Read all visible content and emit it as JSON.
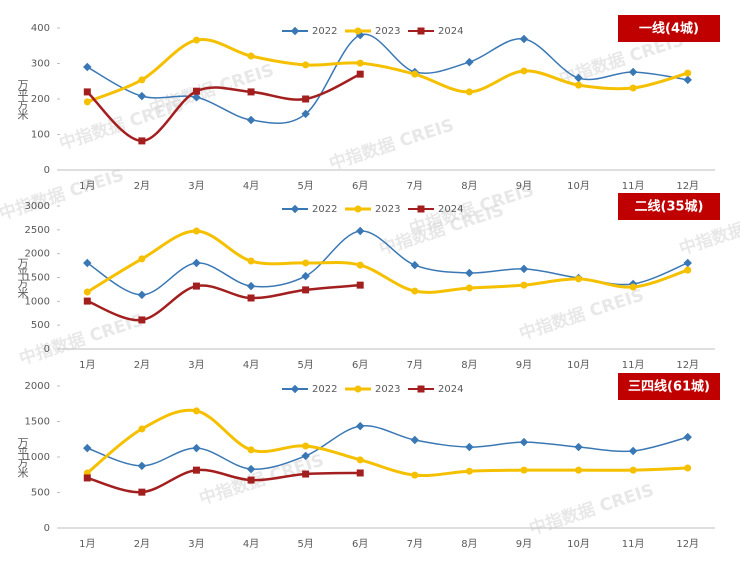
{
  "watermark": "中指数据 CREIS",
  "chart_data": [
    {
      "type": "line",
      "title": "一线(4城)",
      "y_label": "万平方米",
      "categories": [
        "1月",
        "2月",
        "3月",
        "4月",
        "5月",
        "6月",
        "7月",
        "8月",
        "9月",
        "10月",
        "11月",
        "12月"
      ],
      "ylim": [
        0,
        400
      ],
      "yticks": [
        0,
        100,
        200,
        300,
        400
      ],
      "series": [
        {
          "name": "2022",
          "color": "#3a78b5",
          "values": [
            290,
            208,
            205,
            141,
            158,
            380,
            276,
            304,
            369,
            259,
            276,
            254
          ]
        },
        {
          "name": "2023",
          "color": "#f5c000",
          "values": [
            192,
            254,
            366,
            321,
            296,
            301,
            270,
            220,
            279,
            239,
            231,
            273
          ]
        },
        {
          "name": "2024",
          "color": "#a31f1f",
          "values": [
            220,
            82,
            222,
            220,
            200,
            270,
            null,
            null,
            null,
            null,
            null,
            null
          ]
        }
      ]
    },
    {
      "type": "line",
      "title": "二线(35城)",
      "y_label": "万平方米",
      "categories": [
        "1月",
        "2月",
        "3月",
        "4月",
        "5月",
        "6月",
        "7月",
        "8月",
        "9月",
        "10月",
        "11月",
        "12月"
      ],
      "ylim": [
        0,
        3000
      ],
      "yticks": [
        0,
        500,
        1000,
        1500,
        2000,
        2500,
        3000
      ],
      "series": [
        {
          "name": "2022",
          "color": "#3a78b5",
          "values": [
            1805,
            1135,
            1805,
            1320,
            1530,
            2475,
            1760,
            1595,
            1680,
            1490,
            1365,
            1805
          ]
        },
        {
          "name": "2023",
          "color": "#f5c000",
          "values": [
            1195,
            1890,
            2475,
            1845,
            1805,
            1760,
            1215,
            1280,
            1340,
            1470,
            1300,
            1655
          ]
        },
        {
          "name": "2024",
          "color": "#a31f1f",
          "values": [
            1005,
            610,
            1320,
            1070,
            1240,
            1340,
            null,
            null,
            null,
            null,
            null,
            null
          ]
        }
      ]
    },
    {
      "type": "line",
      "title": "三四线(61城)",
      "y_label": "万平方米",
      "categories": [
        "1月",
        "2月",
        "3月",
        "4月",
        "5月",
        "6月",
        "7月",
        "8月",
        "9月",
        "10月",
        "11月",
        "12月"
      ],
      "ylim": [
        0,
        2000
      ],
      "yticks": [
        0,
        500,
        1000,
        1500,
        2000
      ],
      "series": [
        {
          "name": "2022",
          "color": "#3a78b5",
          "values": [
            1125,
            875,
            1125,
            830,
            1015,
            1435,
            1240,
            1140,
            1210,
            1140,
            1085,
            1280
          ]
        },
        {
          "name": "2023",
          "color": "#f5c000",
          "values": [
            775,
            1395,
            1650,
            1100,
            1155,
            960,
            745,
            800,
            815,
            815,
            815,
            845
          ]
        },
        {
          "name": "2024",
          "color": "#a31f1f",
          "values": [
            705,
            505,
            815,
            675,
            760,
            775,
            null,
            null,
            null,
            null,
            null,
            null
          ]
        }
      ]
    }
  ]
}
